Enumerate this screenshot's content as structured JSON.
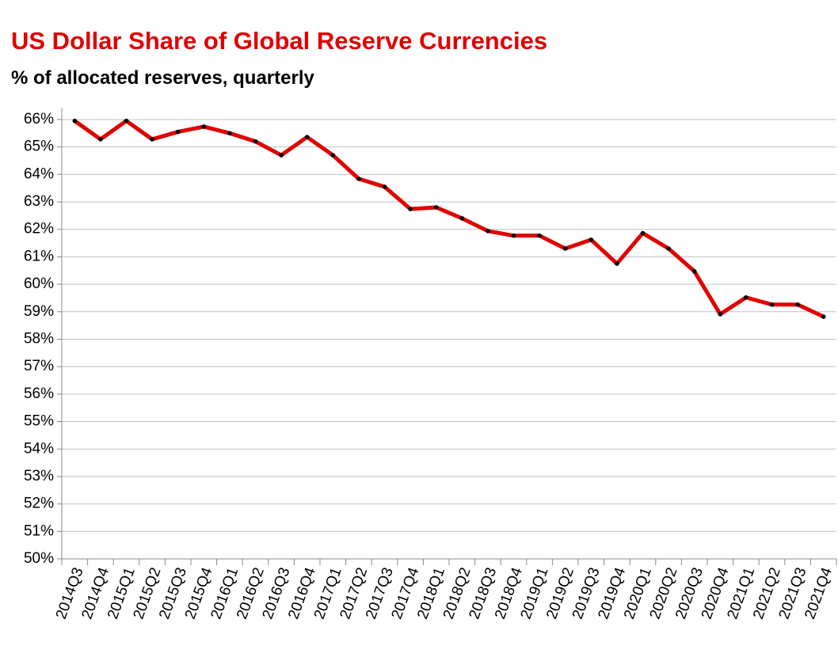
{
  "chart_data": {
    "type": "line",
    "title": "US Dollar Share of Global  Reserve Currencies",
    "subtitle": "% of allocated reserves, quarterly",
    "categories": [
      "2014Q3",
      "2014Q4",
      "2015Q1",
      "2015Q2",
      "2015Q3",
      "2015Q4",
      "2016Q1",
      "2016Q2",
      "2016Q3",
      "2016Q4",
      "2017Q1",
      "2017Q2",
      "2017Q3",
      "2017Q4",
      "2018Q1",
      "2018Q2",
      "2018Q3",
      "2018Q4",
      "2019Q1",
      "2019Q2",
      "2019Q3",
      "2019Q4",
      "2020Q1",
      "2020Q2",
      "2020Q3",
      "2020Q4",
      "2021Q1",
      "2021Q2",
      "2021Q3",
      "2021Q4"
    ],
    "values": [
      65.95,
      65.28,
      65.95,
      65.28,
      65.55,
      65.74,
      65.5,
      65.2,
      64.7,
      65.36,
      64.7,
      63.84,
      63.55,
      62.74,
      62.8,
      62.4,
      61.94,
      61.77,
      61.77,
      61.3,
      61.62,
      60.75,
      61.86,
      61.3,
      60.47,
      58.91,
      59.52,
      59.26,
      59.26,
      58.82
    ],
    "color": "#e00000",
    "marker_color": "#000000",
    "ylim": [
      50,
      66.2
    ],
    "yticks": [
      {
        "value": 50,
        "label": "50%"
      },
      {
        "value": 51,
        "label": "51%"
      },
      {
        "value": 52,
        "label": "52%"
      },
      {
        "value": 53,
        "label": "53%"
      },
      {
        "value": 54,
        "label": "54%"
      },
      {
        "value": 55,
        "label": "55%"
      },
      {
        "value": 56,
        "label": "56%"
      },
      {
        "value": 57,
        "label": "57%"
      },
      {
        "value": 58,
        "label": "58%"
      },
      {
        "value": 59,
        "label": "59%"
      },
      {
        "value": 60,
        "label": "60%"
      },
      {
        "value": 61,
        "label": "61%"
      },
      {
        "value": 62,
        "label": "62%"
      },
      {
        "value": 63,
        "label": "63%"
      },
      {
        "value": 64,
        "label": "64%"
      },
      {
        "value": 65,
        "label": "65%"
      },
      {
        "value": 66,
        "label": "66%"
      }
    ],
    "grid": true
  }
}
